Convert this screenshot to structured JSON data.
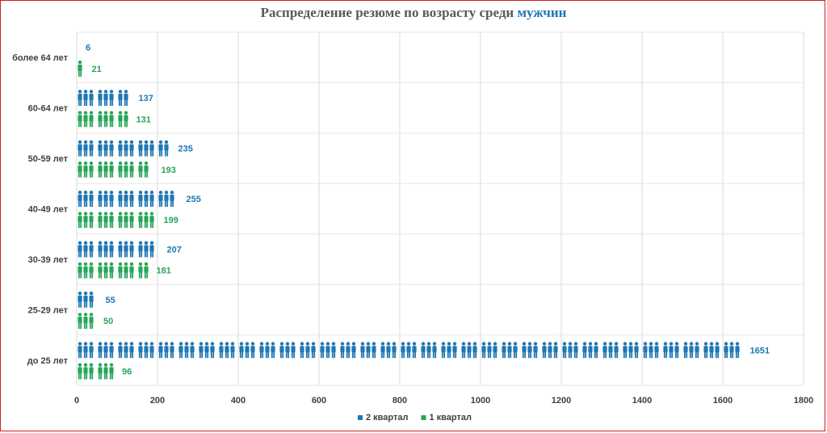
{
  "chart_data": {
    "type": "bar",
    "orientation": "horizontal",
    "pictogram": true,
    "title": "Распределение резюме по возрасту среди",
    "title_accent": "мужчин",
    "categories": [
      "более 64 лет",
      "60-64 лет",
      "50-59 лет",
      "40-49 лет",
      "30-39 лет",
      "25-29 лет",
      "до 25 лет"
    ],
    "series": [
      {
        "name": "2 квартал",
        "color": "#1f77b4",
        "values": [
          6,
          137,
          235,
          255,
          207,
          55,
          1651
        ]
      },
      {
        "name": "1 квартал",
        "color": "#27a65a",
        "values": [
          21,
          131,
          193,
          199,
          181,
          50,
          96
        ]
      }
    ],
    "xlim": [
      0,
      1800
    ],
    "xticks": [
      0,
      200,
      400,
      600,
      800,
      1000,
      1200,
      1400,
      1600,
      1800
    ],
    "grid": true,
    "legend_position": "bottom",
    "icon": "person-icon"
  }
}
